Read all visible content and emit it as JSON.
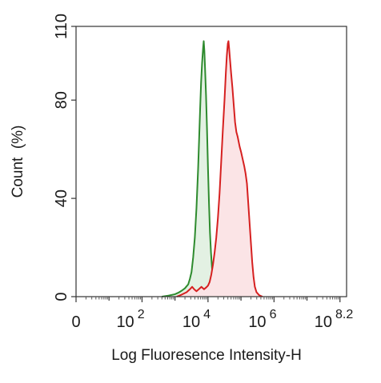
{
  "chart_data": {
    "type": "area",
    "title": "",
    "xlabel": "Log Fluoresence Intensity-H",
    "ylabel": "Count  (%)",
    "x_scale": "log10",
    "xlim": [
      0,
      8.2
    ],
    "ylim": [
      0,
      110
    ],
    "x_ticks": [
      {
        "value": 0,
        "base": "0",
        "exp": ""
      },
      {
        "value": 2,
        "base": "10",
        "exp": "2"
      },
      {
        "value": 4,
        "base": "10",
        "exp": "4"
      },
      {
        "value": 6,
        "base": "10",
        "exp": "6"
      },
      {
        "value": 8,
        "base": "10",
        "exp": "8.2"
      }
    ],
    "y_ticks": [
      {
        "value": 0,
        "label": "0"
      },
      {
        "value": 40,
        "label": "40"
      },
      {
        "value": 80,
        "label": "80"
      },
      {
        "value": 110,
        "label": "110"
      }
    ],
    "grid": false,
    "series": [
      {
        "color": "#2e8b2e",
        "fill": "#e3f1e3",
        "points": [
          [
            2.6,
            0
          ],
          [
            2.8,
            0.4
          ],
          [
            3.0,
            1.0
          ],
          [
            3.1,
            1.6
          ],
          [
            3.2,
            2.4
          ],
          [
            3.3,
            3.4
          ],
          [
            3.4,
            5.0
          ],
          [
            3.45,
            7.2
          ],
          [
            3.5,
            10.0
          ],
          [
            3.55,
            16.0
          ],
          [
            3.6,
            24.0
          ],
          [
            3.65,
            36.0
          ],
          [
            3.7,
            52.0
          ],
          [
            3.73,
            64.0
          ],
          [
            3.76,
            76.0
          ],
          [
            3.79,
            87.0
          ],
          [
            3.82,
            95.0
          ],
          [
            3.85,
            101.0
          ],
          [
            3.87,
            104.0
          ],
          [
            3.89,
            100.0
          ],
          [
            3.91,
            93.0
          ],
          [
            3.94,
            82.0
          ],
          [
            3.97,
            68.0
          ],
          [
            4.0,
            52.0
          ],
          [
            4.03,
            38.0
          ],
          [
            4.06,
            26.0
          ],
          [
            4.09,
            18.0
          ],
          [
            4.12,
            12.0
          ],
          [
            4.15,
            7.5
          ],
          [
            4.2,
            4.0
          ],
          [
            4.25,
            2.0
          ],
          [
            4.35,
            0.8
          ],
          [
            4.5,
            0
          ]
        ]
      },
      {
        "color": "#d62020",
        "fill": "#fbe4e6",
        "points": [
          [
            3.05,
            0
          ],
          [
            3.2,
            0.8
          ],
          [
            3.35,
            1.8
          ],
          [
            3.45,
            3.0
          ],
          [
            3.52,
            4.0
          ],
          [
            3.58,
            3.0
          ],
          [
            3.65,
            2.2
          ],
          [
            3.72,
            3.0
          ],
          [
            3.8,
            4.0
          ],
          [
            3.88,
            3.0
          ],
          [
            3.95,
            3.8
          ],
          [
            4.0,
            4.5
          ],
          [
            4.05,
            6.0
          ],
          [
            4.1,
            9.0
          ],
          [
            4.15,
            13.0
          ],
          [
            4.2,
            18.0
          ],
          [
            4.25,
            24.0
          ],
          [
            4.3,
            32.0
          ],
          [
            4.35,
            42.0
          ],
          [
            4.4,
            55.0
          ],
          [
            4.45,
            68.0
          ],
          [
            4.5,
            80.0
          ],
          [
            4.54,
            91.0
          ],
          [
            4.57,
            98.0
          ],
          [
            4.6,
            103.0
          ],
          [
            4.62,
            104.0
          ],
          [
            4.64,
            101.0
          ],
          [
            4.67,
            96.0
          ],
          [
            4.7,
            91.0
          ],
          [
            4.74,
            85.0
          ],
          [
            4.78,
            78.0
          ],
          [
            4.82,
            71.0
          ],
          [
            4.86,
            67.0
          ],
          [
            4.9,
            65.0
          ],
          [
            4.93,
            63.0
          ],
          [
            4.96,
            61.0
          ],
          [
            5.0,
            59.0
          ],
          [
            5.05,
            56.0
          ],
          [
            5.1,
            53.0
          ],
          [
            5.14,
            50.0
          ],
          [
            5.18,
            46.0
          ],
          [
            5.22,
            38.0
          ],
          [
            5.26,
            30.0
          ],
          [
            5.3,
            22.0
          ],
          [
            5.34,
            14.0
          ],
          [
            5.38,
            8.0
          ],
          [
            5.42,
            4.0
          ],
          [
            5.47,
            1.8
          ],
          [
            5.55,
            0.6
          ],
          [
            5.65,
            0
          ]
        ]
      }
    ]
  }
}
